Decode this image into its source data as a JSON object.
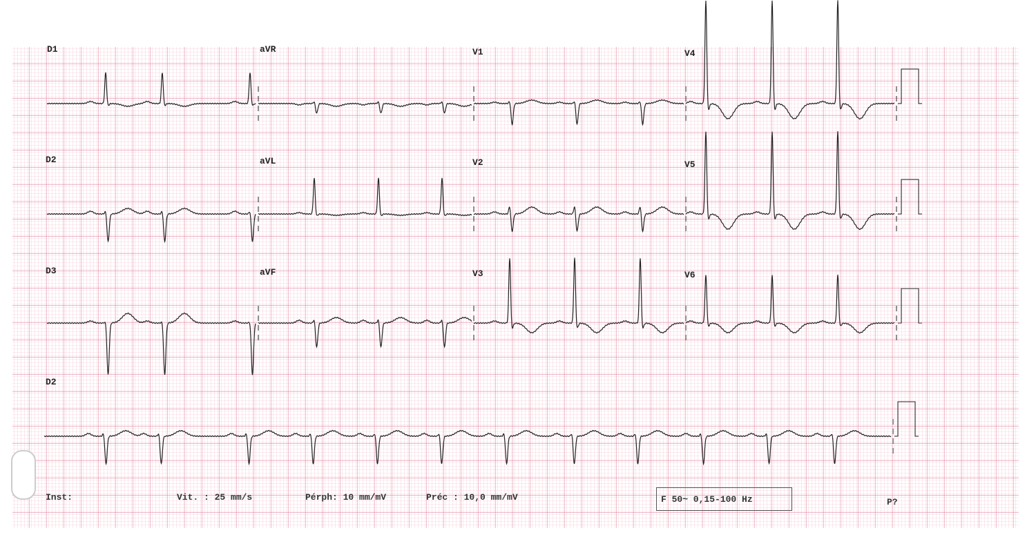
{
  "colors": {
    "grid_minor": "#f2b6c6",
    "grid_major": "#d9708f",
    "trace": "#222222"
  },
  "leads": [
    {
      "label": "D1"
    },
    {
      "label": "aVR"
    },
    {
      "label": "V1"
    },
    {
      "label": "V4"
    },
    {
      "label": "D2"
    },
    {
      "label": "aVL"
    },
    {
      "label": "V2"
    },
    {
      "label": "V5"
    },
    {
      "label": "D3"
    },
    {
      "label": "aVF"
    },
    {
      "label": "V3"
    },
    {
      "label": "V6"
    },
    {
      "label": "D2"
    }
  ],
  "footer": {
    "inst": "Inst:",
    "speed": "Vit. : 25 mm/s",
    "periph": "Pérph: 10 mm/mV",
    "prec": "Préc : 10,0 mm/mV",
    "filter": "F 50~ 0,15-100 Hz",
    "p": "P?"
  }
}
